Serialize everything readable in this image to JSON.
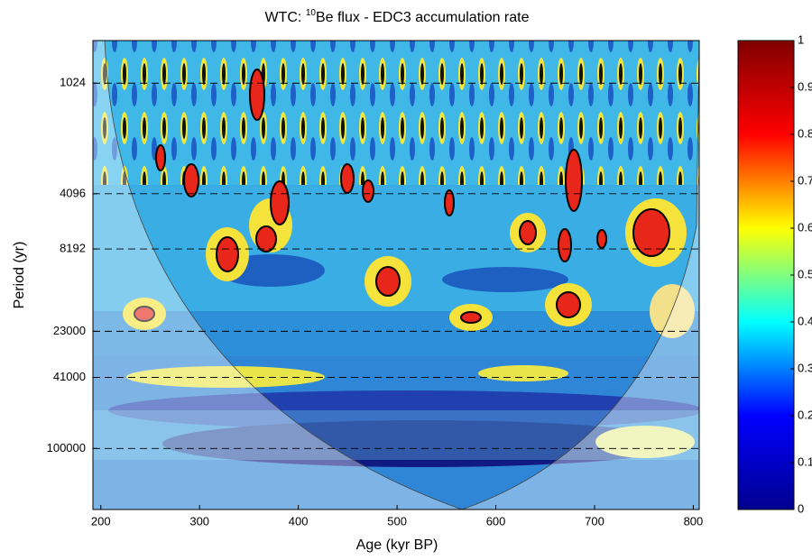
{
  "chart_data": {
    "type": "heatmap",
    "title": [
      "WTC: ",
      "10",
      "Be flux - EDC3 accumulation rate"
    ],
    "xlabel": "Age (kyr BP)",
    "ylabel": "Period (yr)",
    "xlim": [
      192,
      806
    ],
    "xticks": [
      200,
      300,
      400,
      500,
      600,
      700,
      800
    ],
    "ylim": [
      600,
      215000
    ],
    "ylog": true,
    "yinverted": true,
    "yticks": [
      1024,
      4096,
      8192,
      23000,
      41000,
      100000
    ],
    "grid": true,
    "colorbar": {
      "lim": [
        0,
        1
      ],
      "ticks": [
        0,
        0.1,
        0.2,
        0.3,
        0.4,
        0.5,
        0.6,
        0.7,
        0.8,
        0.9,
        1
      ],
      "colors": [
        "#00008f",
        "#0000ff",
        "#00ffff",
        "#ffff00",
        "#ff0000",
        "#800000"
      ]
    }
  }
}
